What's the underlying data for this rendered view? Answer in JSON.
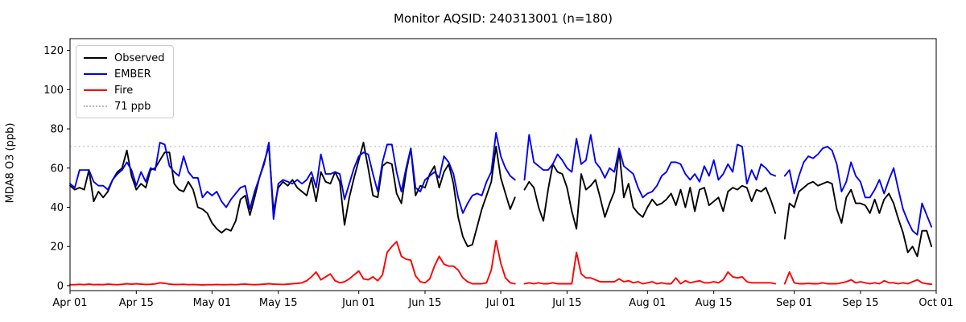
{
  "chart_data": {
    "type": "line",
    "title": "Monitor AQSID: 240313001 (n=180)",
    "ylabel": "MDA8 O3 (ppb)",
    "xlabel": "",
    "x_unit": "day index, 0 = Apr 01, daily values Apr 01 - Sep 30; null = missing day",
    "ylim": [
      -2.5,
      126
    ],
    "yticks": [
      0,
      20,
      40,
      60,
      80,
      100,
      120
    ],
    "xtick_labels": [
      "Apr 01",
      "Apr 15",
      "May 01",
      "May 15",
      "Jun 01",
      "Jun 15",
      "Jul 01",
      "Jul 15",
      "Aug 01",
      "Aug 15",
      "Sep 01",
      "Sep 15",
      "Oct 01"
    ],
    "xtick_days": [
      0,
      14,
      30,
      44,
      61,
      75,
      91,
      105,
      122,
      136,
      153,
      167,
      183
    ],
    "x_total_days": 183,
    "grid": false,
    "legend_position": "upper left",
    "threshold": {
      "value": 71,
      "label": "71 ppb",
      "color": "#b9b9b9",
      "style": "dotted"
    },
    "legend": [
      {
        "label": "Observed",
        "color": "#000000",
        "style": "solid"
      },
      {
        "label": "EMBER",
        "color": "#0000f0",
        "style": "solid"
      },
      {
        "label": "Fire",
        "color": "#ff0000",
        "style": "solid"
      },
      {
        "label": "71 ppb",
        "color": "#b9b9b9",
        "style": "dotted"
      }
    ],
    "series": [
      {
        "name": "Observed",
        "color": "#000000",
        "values": [
          51,
          49,
          50,
          49,
          59,
          43,
          48,
          45,
          48,
          54,
          58,
          60,
          69,
          56,
          49,
          52,
          50,
          59,
          60,
          64,
          68,
          68,
          52,
          49,
          48,
          53,
          49,
          40,
          39,
          37,
          32,
          29,
          27,
          29,
          28,
          33,
          44,
          46,
          36,
          45,
          55,
          63,
          71,
          38,
          50,
          53,
          51,
          54,
          50,
          48,
          46,
          55,
          43,
          58,
          53,
          52,
          58,
          53,
          31,
          45,
          55,
          64,
          73,
          60,
          46,
          45,
          61,
          63,
          62,
          47,
          42,
          58,
          70,
          46,
          51,
          50,
          57,
          61,
          50,
          58,
          62,
          52,
          35,
          25,
          20,
          21,
          30,
          39,
          46,
          53,
          71,
          55,
          47,
          39,
          45,
          null,
          49,
          53,
          50,
          40,
          33,
          49,
          62,
          58,
          57,
          50,
          38,
          29,
          57,
          49,
          51,
          54,
          45,
          35,
          42,
          48,
          69,
          45,
          52,
          40,
          37,
          35,
          40,
          44,
          41,
          42,
          44,
          47,
          41,
          49,
          40,
          50,
          38,
          49,
          50,
          41,
          43,
          45,
          38,
          48,
          50,
          49,
          51,
          50,
          43,
          49,
          48,
          50,
          44,
          37,
          null,
          24,
          42,
          40,
          48,
          50,
          52,
          53,
          51,
          52,
          53,
          52,
          39,
          32,
          45,
          49,
          42,
          42,
          41,
          37,
          44,
          37,
          44,
          47,
          42,
          34,
          27,
          17,
          20,
          15,
          28,
          28,
          20
        ]
      },
      {
        "name": "EMBER",
        "color": "#0000f0",
        "values": [
          52,
          50,
          59,
          59,
          59,
          53,
          51,
          51,
          49,
          54,
          57,
          59,
          63,
          59,
          51,
          58,
          53,
          60,
          59,
          73,
          72,
          61,
          58,
          56,
          66,
          58,
          55,
          55,
          45,
          48,
          46,
          48,
          43,
          40,
          44,
          47,
          50,
          51,
          39,
          48,
          55,
          62,
          73,
          34,
          52,
          54,
          53,
          52,
          54,
          52,
          54,
          58,
          50,
          67,
          57,
          57,
          58,
          57,
          44,
          52,
          60,
          66,
          68,
          67,
          57,
          48,
          63,
          72,
          72,
          58,
          48,
          60,
          70,
          50,
          48,
          54,
          56,
          58,
          55,
          66,
          63,
          57,
          45,
          37,
          42,
          46,
          47,
          46,
          53,
          58,
          78,
          66,
          60,
          56,
          54,
          null,
          54,
          77,
          63,
          61,
          59,
          59,
          62,
          67,
          64,
          60,
          58,
          75,
          62,
          64,
          77,
          63,
          60,
          55,
          60,
          58,
          70,
          61,
          59,
          57,
          50,
          45,
          47,
          48,
          51,
          56,
          58,
          63,
          63,
          62,
          57,
          54,
          57,
          53,
          61,
          56,
          64,
          54,
          57,
          62,
          58,
          72,
          71,
          52,
          59,
          54,
          62,
          60,
          57,
          56,
          null,
          56,
          59,
          47,
          56,
          63,
          66,
          65,
          67,
          70,
          71,
          69,
          62,
          48,
          53,
          63,
          56,
          53,
          45,
          45,
          49,
          54,
          47,
          54,
          60,
          49,
          39,
          33,
          28,
          26,
          42,
          36,
          30
        ]
      },
      {
        "name": "Fire",
        "color": "#ff0000",
        "values": [
          0.5,
          0.5,
          0.7,
          0.5,
          0.8,
          0.5,
          0.6,
          0.5,
          0.8,
          0.6,
          0.5,
          0.7,
          1.0,
          0.8,
          1.0,
          0.8,
          0.6,
          0.7,
          0.9,
          1.5,
          1.2,
          0.8,
          0.6,
          0.6,
          0.7,
          0.5,
          0.6,
          0.5,
          0.4,
          0.5,
          0.5,
          0.6,
          0.5,
          0.5,
          0.6,
          0.5,
          0.7,
          0.8,
          0.6,
          0.5,
          0.6,
          0.8,
          1.0,
          0.8,
          0.7,
          0.6,
          0.8,
          1.0,
          1.2,
          1.5,
          2.5,
          4.5,
          7,
          3,
          4.5,
          6,
          2.5,
          1.5,
          2,
          3.5,
          5.5,
          7.5,
          3.5,
          3,
          4.5,
          2.5,
          5.5,
          17,
          20,
          22.5,
          15,
          13.5,
          13,
          5,
          2,
          1.5,
          3.5,
          10,
          15,
          11,
          10,
          10,
          8,
          4,
          2,
          1,
          1,
          1,
          1.5,
          8,
          23,
          11.5,
          4,
          1.5,
          1,
          null,
          1,
          1.5,
          1,
          1.5,
          1,
          1,
          1.5,
          1,
          1,
          1,
          1,
          17,
          6,
          4,
          4,
          3,
          2,
          2,
          2,
          2,
          3.5,
          2,
          2.5,
          1.5,
          2,
          1,
          1.5,
          2,
          1,
          1.5,
          1,
          1,
          4,
          1,
          2.5,
          1.5,
          2,
          2.5,
          1.5,
          1.5,
          2,
          1.5,
          3,
          7,
          4.5,
          4,
          4.5,
          2,
          1.5,
          1.5,
          1.5,
          1.5,
          1.5,
          1,
          null,
          1,
          7,
          1.5,
          1,
          1,
          1.2,
          1,
          1,
          1.5,
          1,
          1,
          1,
          1.5,
          2,
          3,
          1.5,
          2,
          1.5,
          1,
          1.5,
          1,
          2.5,
          1.5,
          1.5,
          1,
          1.5,
          1,
          2,
          3,
          1.5,
          1,
          0.8
        ]
      }
    ]
  }
}
